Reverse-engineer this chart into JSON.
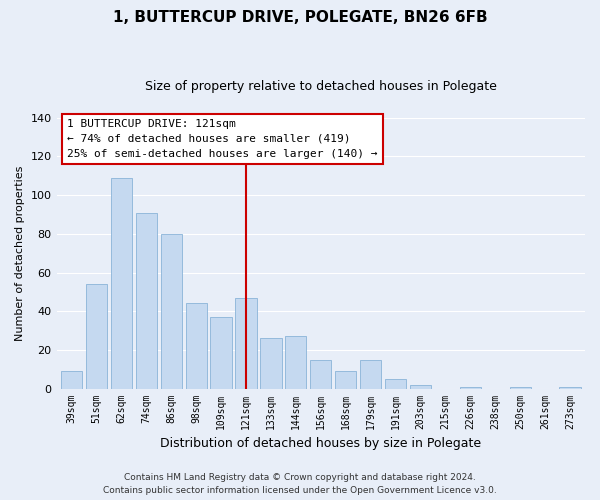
{
  "title": "1, BUTTERCUP DRIVE, POLEGATE, BN26 6FB",
  "subtitle": "Size of property relative to detached houses in Polegate",
  "xlabel": "Distribution of detached houses by size in Polegate",
  "ylabel": "Number of detached properties",
  "categories": [
    "39sqm",
    "51sqm",
    "62sqm",
    "74sqm",
    "86sqm",
    "98sqm",
    "109sqm",
    "121sqm",
    "133sqm",
    "144sqm",
    "156sqm",
    "168sqm",
    "179sqm",
    "191sqm",
    "203sqm",
    "215sqm",
    "226sqm",
    "238sqm",
    "250sqm",
    "261sqm",
    "273sqm"
  ],
  "values": [
    9,
    54,
    109,
    91,
    80,
    44,
    37,
    47,
    26,
    27,
    15,
    9,
    15,
    5,
    2,
    0,
    1,
    0,
    1,
    0,
    1
  ],
  "bar_color": "#c5d9f0",
  "bar_edge_color": "#8ab4d8",
  "highlight_bar_index": 7,
  "highlight_line_color": "#cc0000",
  "ylim": [
    0,
    140
  ],
  "yticks": [
    0,
    20,
    40,
    60,
    80,
    100,
    120,
    140
  ],
  "annotation_title": "1 BUTTERCUP DRIVE: 121sqm",
  "annotation_line1": "← 74% of detached houses are smaller (419)",
  "annotation_line2": "25% of semi-detached houses are larger (140) →",
  "annotation_box_color": "#ffffff",
  "annotation_box_edge": "#cc0000",
  "footnote1": "Contains HM Land Registry data © Crown copyright and database right 2024.",
  "footnote2": "Contains public sector information licensed under the Open Government Licence v3.0.",
  "bg_color": "#e8eef8",
  "grid_color": "#ffffff",
  "title_fontsize": 11,
  "subtitle_fontsize": 9
}
